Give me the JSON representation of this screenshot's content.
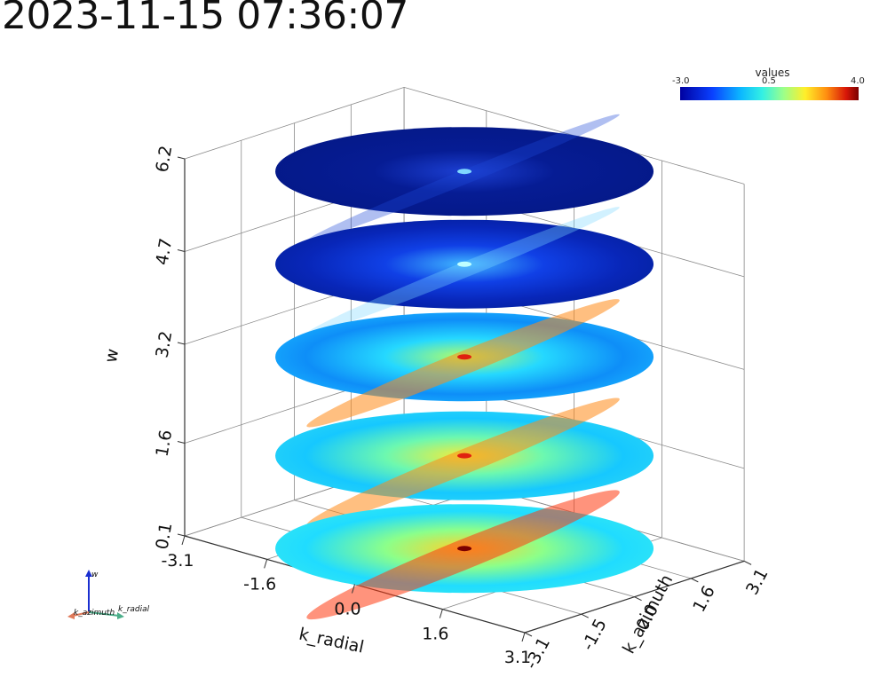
{
  "timestamp": "2023-11-15 07:36:07",
  "colorbar": {
    "title": "values",
    "min_label": "-3.0",
    "mid_label": "0.5",
    "max_label": "4.0",
    "colormap": "jet"
  },
  "chart_data": {
    "type": "heatmap",
    "layout": "stacked 3D disc slices",
    "title": "",
    "xlabel": "k_radial",
    "ylabel": "k_azimuth",
    "zlabel": "w",
    "x_ticks": [
      "-3.1",
      "-1.6",
      "0.0",
      "1.6",
      "3.1"
    ],
    "y_ticks": [
      "-3.1",
      "-1.5",
      "0.0",
      "1.6",
      "3.1"
    ],
    "z_ticks": [
      "0.1",
      "1.6",
      "3.2",
      "4.7",
      "6.2"
    ],
    "xlim": [
      -3.1,
      3.1
    ],
    "ylim": [
      -3.1,
      3.1
    ],
    "zlim": [
      0.1,
      6.2
    ],
    "value_range": [
      -3.0,
      4.0
    ],
    "slices": [
      {
        "w": 0.1,
        "mean_value": 0.6,
        "peak_value": 4.0
      },
      {
        "w": 1.6,
        "mean_value": 0.3,
        "peak_value": 2.6
      },
      {
        "w": 3.2,
        "mean_value": -0.3,
        "peak_value": 2.3
      },
      {
        "w": 4.7,
        "mean_value": -2.1,
        "peak_value": 0.3
      },
      {
        "w": 6.2,
        "mean_value": -2.6,
        "peak_value": -1.3
      }
    ],
    "grid": true
  },
  "orientation": {
    "x": "k_radial",
    "y": "k_azimuth",
    "z": "w"
  }
}
